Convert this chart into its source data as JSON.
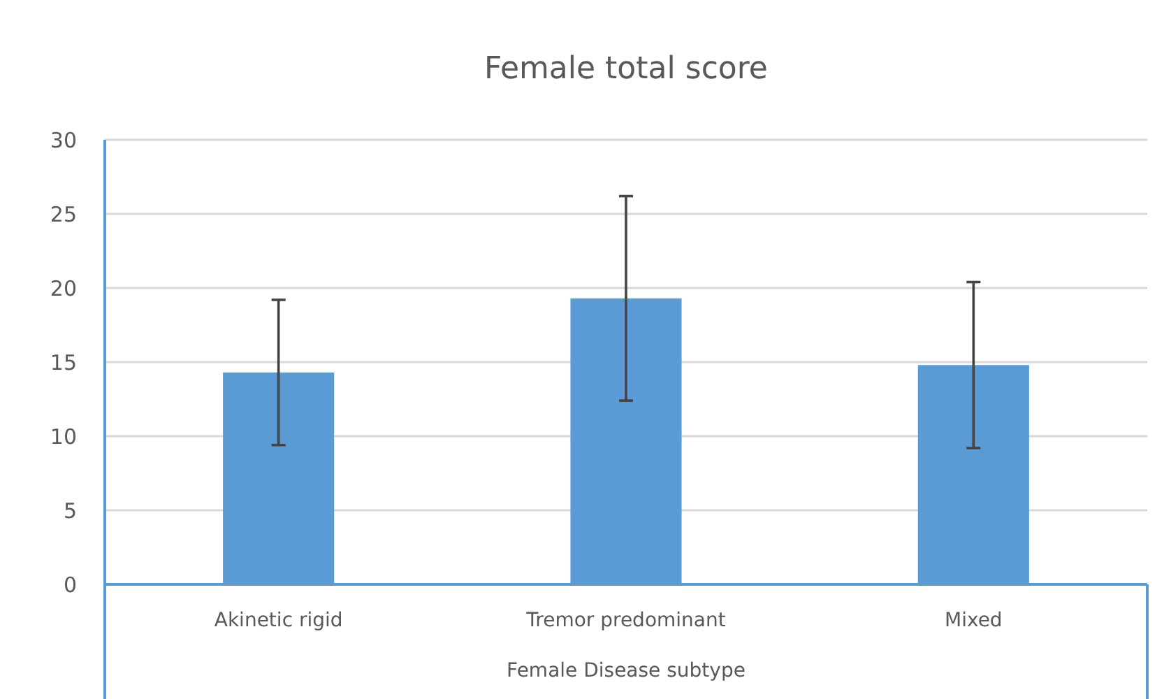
{
  "chart_data": {
    "type": "bar",
    "title": "Female total score",
    "xlabel": "Female Disease subtype",
    "categories": [
      "Akinetic rigid",
      "Tremor predominant",
      "Mixed"
    ],
    "values": [
      14.3,
      19.3,
      14.8
    ],
    "errors": [
      4.9,
      6.9,
      5.6
    ],
    "color": "#5b9bd5",
    "ylim": [
      0,
      30
    ],
    "yticks": [
      0,
      5,
      10,
      15,
      20,
      25,
      30
    ],
    "grid": "y"
  }
}
